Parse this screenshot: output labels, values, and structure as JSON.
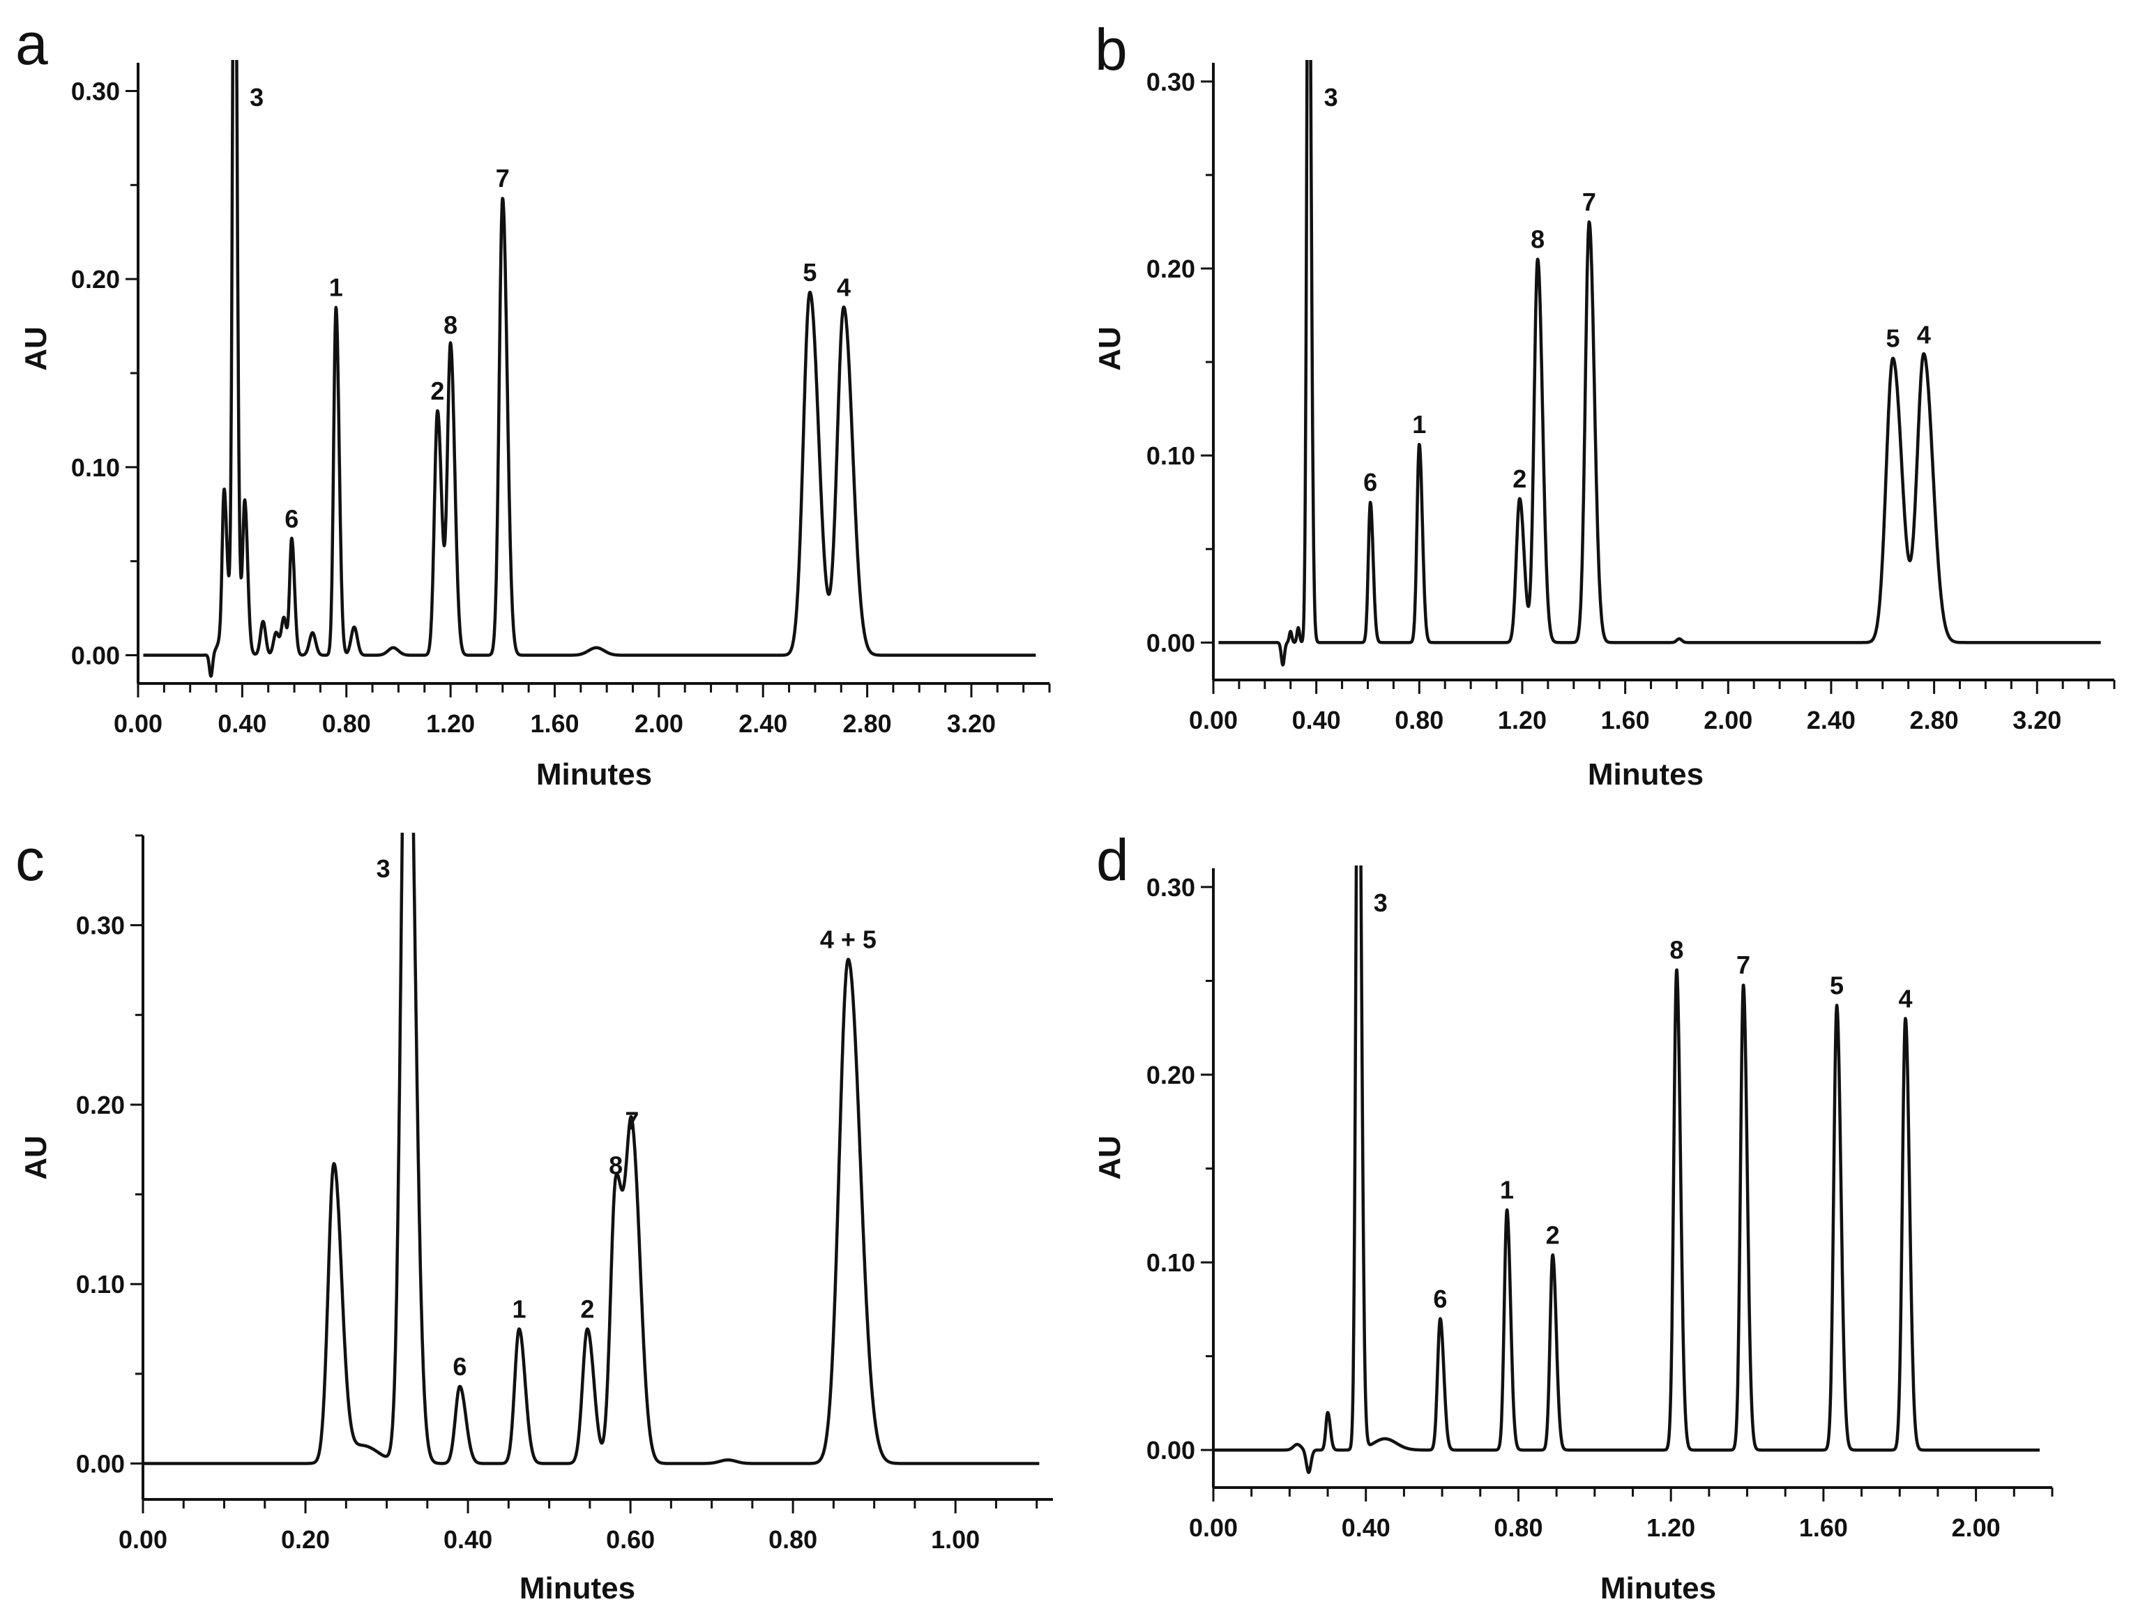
{
  "chart_data": [
    {
      "id": "a",
      "type": "line",
      "panel_label": "a",
      "xlabel": "Minutes",
      "ylabel": "AU",
      "xlim": [
        0,
        3.5
      ],
      "ylim": [
        -0.015,
        0.315
      ],
      "xticks": [
        "0.00",
        "0.40",
        "0.80",
        "1.20",
        "1.60",
        "2.00",
        "2.40",
        "2.80",
        "3.20"
      ],
      "yticks": [
        "0.00",
        "0.10",
        "0.20",
        "0.30"
      ],
      "peaks": [
        {
          "label": "3",
          "t": 0.37,
          "h": 0.45,
          "w": 0.007
        },
        {
          "label": "",
          "t": 0.33,
          "h": 0.07,
          "w": 0.007
        },
        {
          "label": "",
          "t": 0.41,
          "h": 0.075,
          "w": 0.008
        },
        {
          "label": "6",
          "t": 0.59,
          "h": 0.062,
          "w": 0.008
        },
        {
          "label": "1",
          "t": 0.76,
          "h": 0.185,
          "w": 0.009
        },
        {
          "label": "2",
          "t": 1.15,
          "h": 0.13,
          "w": 0.012
        },
        {
          "label": "8",
          "t": 1.2,
          "h": 0.165,
          "w": 0.012
        },
        {
          "label": "7",
          "t": 1.4,
          "h": 0.243,
          "w": 0.013
        },
        {
          "label": "5",
          "t": 2.58,
          "h": 0.193,
          "w": 0.025
        },
        {
          "label": "4",
          "t": 2.71,
          "h": 0.185,
          "w": 0.025
        }
      ]
    },
    {
      "id": "b",
      "type": "line",
      "panel_label": "b",
      "xlabel": "Minutes",
      "ylabel": "AU",
      "xlim": [
        0,
        3.5
      ],
      "ylim": [
        -0.02,
        0.31
      ],
      "xticks": [
        "0.00",
        "0.40",
        "0.80",
        "1.20",
        "1.60",
        "2.00",
        "2.40",
        "2.80",
        "3.20"
      ],
      "yticks": [
        "0.00",
        "0.10",
        "0.20",
        "0.30"
      ],
      "peaks": [
        {
          "label": "3",
          "t": 0.37,
          "h": 0.45,
          "w": 0.007
        },
        {
          "label": "6",
          "t": 0.61,
          "h": 0.075,
          "w": 0.008
        },
        {
          "label": "1",
          "t": 0.8,
          "h": 0.106,
          "w": 0.009
        },
        {
          "label": "2",
          "t": 1.19,
          "h": 0.077,
          "w": 0.013
        },
        {
          "label": "8",
          "t": 1.26,
          "h": 0.205,
          "w": 0.014
        },
        {
          "label": "7",
          "t": 1.46,
          "h": 0.225,
          "w": 0.015
        },
        {
          "label": "5",
          "t": 2.64,
          "h": 0.152,
          "w": 0.026
        },
        {
          "label": "4",
          "t": 2.76,
          "h": 0.154,
          "w": 0.026
        }
      ]
    },
    {
      "id": "c",
      "type": "line",
      "panel_label": "c",
      "xlabel": "Minutes",
      "ylabel": "AU",
      "xlim": [
        0,
        1.12
      ],
      "ylim": [
        -0.02,
        0.35
      ],
      "xticks": [
        "0.00",
        "0.20",
        "0.40",
        "0.60",
        "0.80",
        "1.00"
      ],
      "yticks": [
        "0.00",
        "0.10",
        "0.20",
        "0.30"
      ],
      "peaks": [
        {
          "label": "",
          "t": 0.235,
          "h": 0.165,
          "w": 0.007
        },
        {
          "label": "3",
          "t": 0.325,
          "h": 0.5,
          "w": 0.007
        },
        {
          "label": "6",
          "t": 0.39,
          "h": 0.043,
          "w": 0.0055
        },
        {
          "label": "1",
          "t": 0.463,
          "h": 0.075,
          "w": 0.0055
        },
        {
          "label": "2",
          "t": 0.547,
          "h": 0.075,
          "w": 0.006
        },
        {
          "label": "8",
          "t": 0.582,
          "h": 0.155,
          "w": 0.0065
        },
        {
          "label": "7",
          "t": 0.602,
          "h": 0.18,
          "w": 0.0075
        },
        {
          "label": "4 + 5",
          "t": 0.868,
          "h": 0.281,
          "w": 0.011
        }
      ]
    },
    {
      "id": "d",
      "type": "line",
      "panel_label": "d",
      "xlabel": "Minutes",
      "ylabel": "AU",
      "xlim": [
        0,
        2.2
      ],
      "ylim": [
        -0.02,
        0.31
      ],
      "xticks": [
        "0.00",
        "0.40",
        "0.80",
        "1.20",
        "1.60",
        "2.00"
      ],
      "yticks": [
        "0.00",
        "0.10",
        "0.20",
        "0.30"
      ],
      "peaks": [
        {
          "label": "",
          "t": 0.3,
          "h": 0.02,
          "w": 0.005
        },
        {
          "label": "3",
          "t": 0.38,
          "h": 0.45,
          "w": 0.006
        },
        {
          "label": "6",
          "t": 0.595,
          "h": 0.07,
          "w": 0.007
        },
        {
          "label": "1",
          "t": 0.77,
          "h": 0.128,
          "w": 0.007
        },
        {
          "label": "2",
          "t": 0.89,
          "h": 0.104,
          "w": 0.007
        },
        {
          "label": "8",
          "t": 1.215,
          "h": 0.256,
          "w": 0.0075
        },
        {
          "label": "7",
          "t": 1.39,
          "h": 0.248,
          "w": 0.0075
        },
        {
          "label": "5",
          "t": 1.635,
          "h": 0.237,
          "w": 0.008
        },
        {
          "label": "4",
          "t": 1.815,
          "h": 0.23,
          "w": 0.008
        }
      ]
    }
  ]
}
